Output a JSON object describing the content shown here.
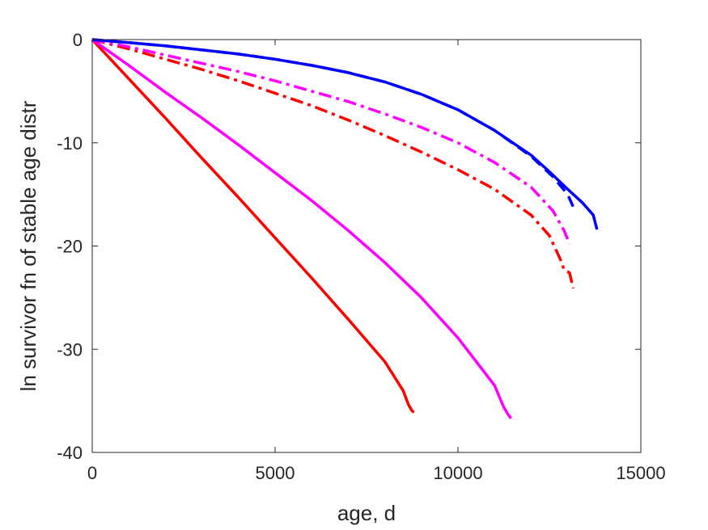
{
  "chart_data": {
    "type": "line",
    "title": "",
    "xlabel": "age, d",
    "ylabel": "ln survivor fn of stable age distr",
    "xlim": [
      0,
      15000
    ],
    "ylim": [
      -40,
      0
    ],
    "xticks": [
      0,
      5000,
      10000,
      15000
    ],
    "yticks": [
      0,
      -10,
      -20,
      -30,
      -40
    ],
    "xtick_labels": [
      "0",
      "5000",
      "10000",
      "15000"
    ],
    "ytick_labels": [
      "0",
      "-10",
      "-20",
      "-30",
      "-40"
    ],
    "grid": false,
    "legend": "none",
    "series": [
      {
        "color": "#ff0000",
        "dash": "solid",
        "points": [
          [
            0,
            0
          ],
          [
            1000,
            -3.8
          ],
          [
            2000,
            -7.6
          ],
          [
            3000,
            -11.5
          ],
          [
            4000,
            -15.3
          ],
          [
            5000,
            -19.2
          ],
          [
            6000,
            -23.1
          ],
          [
            7000,
            -27.1
          ],
          [
            8000,
            -31.2
          ],
          [
            8500,
            -34.0
          ],
          [
            8650,
            -35.4
          ],
          [
            8750,
            -36.0
          ],
          [
            8800,
            -36.1
          ]
        ]
      },
      {
        "color": "#ff00ff",
        "dash": "solid",
        "points": [
          [
            0,
            0
          ],
          [
            1000,
            -2.5
          ],
          [
            2000,
            -5.1
          ],
          [
            3000,
            -7.6
          ],
          [
            4000,
            -10.2
          ],
          [
            5000,
            -12.9
          ],
          [
            6000,
            -15.6
          ],
          [
            7000,
            -18.5
          ],
          [
            8000,
            -21.6
          ],
          [
            9000,
            -25.0
          ],
          [
            10000,
            -28.9
          ],
          [
            11000,
            -33.5
          ],
          [
            11250,
            -35.6
          ],
          [
            11350,
            -36.2
          ],
          [
            11450,
            -36.7
          ]
        ]
      },
      {
        "color": "#ff0000",
        "dash": "dashdot",
        "points": [
          [
            0,
            0
          ],
          [
            1000,
            -0.9
          ],
          [
            2000,
            -1.9
          ],
          [
            3000,
            -2.9
          ],
          [
            4000,
            -4.0
          ],
          [
            5000,
            -5.2
          ],
          [
            6000,
            -6.4
          ],
          [
            7000,
            -7.8
          ],
          [
            8000,
            -9.3
          ],
          [
            9000,
            -10.9
          ],
          [
            10000,
            -12.6
          ],
          [
            11000,
            -14.5
          ],
          [
            12000,
            -17.0
          ],
          [
            12500,
            -19.0
          ],
          [
            12800,
            -21.3
          ],
          [
            12900,
            -22.3
          ],
          [
            13050,
            -22.6
          ],
          [
            13150,
            -24.1
          ]
        ]
      },
      {
        "color": "#ff00ff",
        "dash": "dashdot",
        "points": [
          [
            0,
            0
          ],
          [
            1000,
            -0.7
          ],
          [
            2000,
            -1.5
          ],
          [
            3000,
            -2.3
          ],
          [
            4000,
            -3.1
          ],
          [
            5000,
            -4.0
          ],
          [
            6000,
            -5.0
          ],
          [
            7000,
            -6.0
          ],
          [
            8000,
            -7.2
          ],
          [
            9000,
            -8.5
          ],
          [
            10000,
            -10.0
          ],
          [
            11000,
            -11.9
          ],
          [
            12000,
            -14.3
          ],
          [
            12600,
            -16.6
          ],
          [
            12900,
            -18.5
          ],
          [
            13050,
            -19.8
          ]
        ]
      },
      {
        "color": "#0000ff",
        "dash": "dashed",
        "points": [
          [
            0,
            0
          ],
          [
            1000,
            -0.3
          ],
          [
            2000,
            -0.6
          ],
          [
            3000,
            -1.0
          ],
          [
            4000,
            -1.4
          ],
          [
            5000,
            -1.9
          ],
          [
            6000,
            -2.5
          ],
          [
            7000,
            -3.2
          ],
          [
            8000,
            -4.1
          ],
          [
            9000,
            -5.3
          ],
          [
            10000,
            -6.8
          ],
          [
            11000,
            -8.8
          ],
          [
            12000,
            -11.3
          ],
          [
            12600,
            -13.3
          ],
          [
            13000,
            -15.0
          ],
          [
            13150,
            -16.2
          ]
        ]
      },
      {
        "color": "#0000ff",
        "dash": "solid",
        "points": [
          [
            0,
            0
          ],
          [
            1000,
            -0.3
          ],
          [
            2000,
            -0.6
          ],
          [
            3000,
            -1.0
          ],
          [
            4000,
            -1.4
          ],
          [
            5000,
            -1.9
          ],
          [
            6000,
            -2.5
          ],
          [
            7000,
            -3.2
          ],
          [
            8000,
            -4.1
          ],
          [
            9000,
            -5.3
          ],
          [
            10000,
            -6.8
          ],
          [
            11000,
            -8.8
          ],
          [
            12000,
            -11.2
          ],
          [
            12500,
            -12.8
          ],
          [
            13000,
            -14.5
          ],
          [
            13400,
            -15.8
          ],
          [
            13700,
            -17.0
          ],
          [
            13800,
            -18.4
          ]
        ]
      }
    ]
  }
}
